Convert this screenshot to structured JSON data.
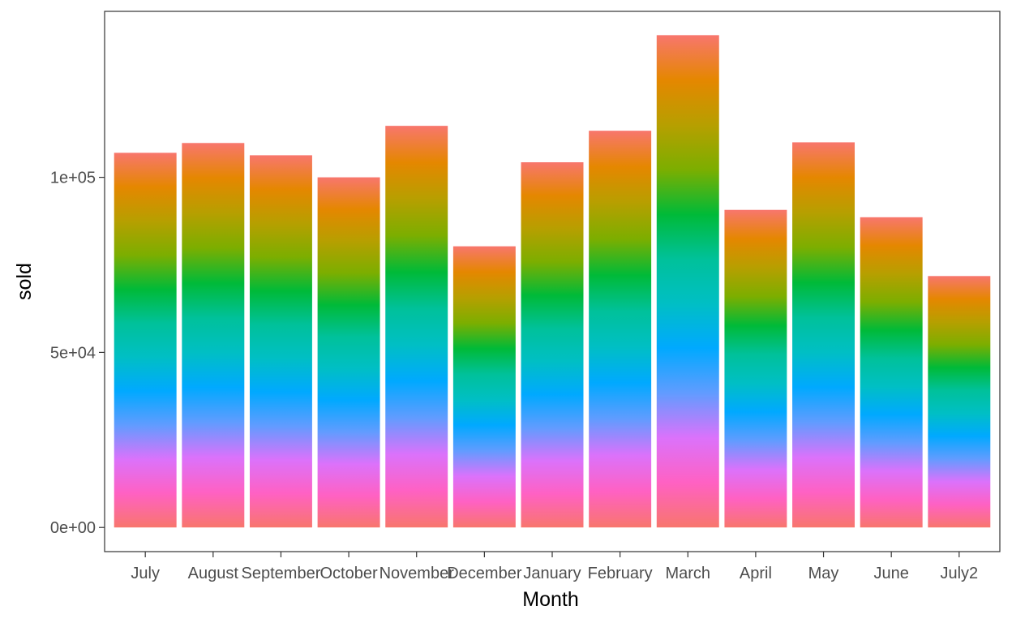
{
  "chart_data": {
    "type": "bar",
    "stacked": true,
    "xlabel": "Month",
    "ylabel": "sold",
    "categories": [
      "July",
      "August",
      "September",
      "October",
      "November",
      "December",
      "January",
      "February",
      "March",
      "April",
      "May",
      "June",
      "July2"
    ],
    "values": [
      107000,
      109800,
      106300,
      100000,
      114700,
      80300,
      104300,
      113300,
      140600,
      90700,
      110000,
      88600,
      71800
    ],
    "ylim": [
      -6900,
      147400
    ],
    "yticks": [
      0,
      50000,
      100000
    ],
    "ytick_labels": [
      "0e+00",
      "5e+04",
      "1e+05"
    ],
    "grid": false,
    "legend": "none",
    "fill_gradient_bottom_to_top": [
      "#F8766D",
      "#FF61C3",
      "#DB72FB",
      "#619CFF",
      "#00A9FF",
      "#00BFC4",
      "#00C19A",
      "#00BA38",
      "#7CAE00",
      "#B79F00",
      "#E58700",
      "#F8766D"
    ]
  }
}
